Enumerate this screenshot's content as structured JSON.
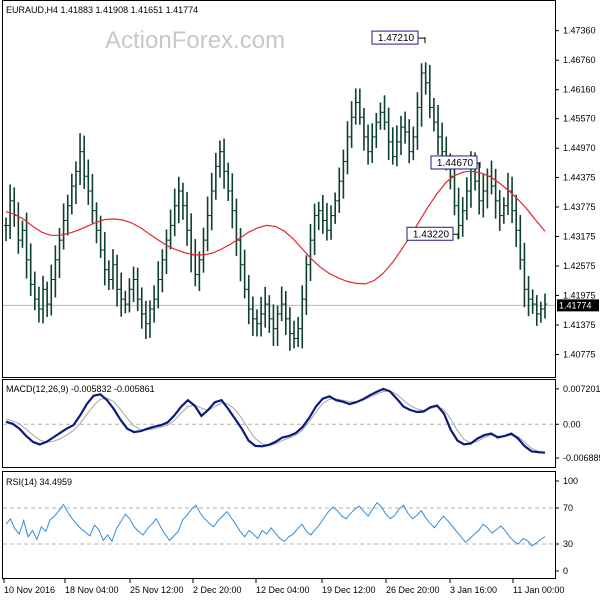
{
  "watermark": "ActionForex.com",
  "chart_data": [
    {
      "type": "candlestick",
      "title": "EURAUD,H4  1.41883 1.41908 1.41651 1.41774",
      "ylim": [
        1.405,
        1.477
      ],
      "yticks": [
        "1.47360",
        "1.46760",
        "1.46160",
        "1.45570",
        "1.44970",
        "1.44375",
        "1.43775",
        "1.43175",
        "1.42575",
        "1.41975",
        "1.41375",
        "1.40775"
      ],
      "current_price": "1.41774",
      "current_value": 1.41774,
      "x_tick_labels": [
        "10 Nov 2016",
        "18 Nov 04:00",
        "25 Nov 12:00",
        "2 Dec 20:00",
        "12 Dec 04:00",
        "19 Dec 12:00",
        "26 Dec 20:00",
        "3 Jan 16:00",
        "11 Jan 00:00"
      ],
      "annotations": [
        {
          "label": "1.47210",
          "value": 1.4721
        },
        {
          "label": "1.44670",
          "value": 1.4467
        },
        {
          "label": "1.43220",
          "value": 1.4322
        }
      ],
      "series": [
        {
          "name": "close",
          "values": [
            1.434,
            1.439,
            1.436,
            1.431,
            1.433,
            1.427,
            1.422,
            1.419,
            1.417,
            1.421,
            1.418,
            1.423,
            1.427,
            1.431,
            1.435,
            1.438,
            1.442,
            1.445,
            1.449,
            1.444,
            1.441,
            1.437,
            1.433,
            1.429,
            1.425,
            1.423,
            1.426,
            1.421,
            1.419,
            1.418,
            1.421,
            1.423,
            1.419,
            1.416,
            1.414,
            1.417,
            1.419,
            1.423,
            1.427,
            1.431,
            1.434,
            1.438,
            1.441,
            1.438,
            1.433,
            1.428,
            1.424,
            1.427,
            1.431,
            1.436,
            1.441,
            1.446,
            1.449,
            1.445,
            1.441,
            1.437,
            1.431,
            1.426,
            1.421,
            1.417,
            1.415,
            1.414,
            1.416,
            1.418,
            1.415,
            1.413,
            1.416,
            1.418,
            1.415,
            1.412,
            1.411,
            1.413,
            1.419,
            1.426,
            1.431,
            1.436,
            1.437,
            1.435,
            1.433,
            1.436,
            1.439,
            1.443,
            1.447,
            1.452,
            1.456,
            1.459,
            1.456,
            1.452,
            1.449,
            1.452,
            1.455,
            1.457,
            1.455,
            1.451,
            1.448,
            1.451,
            1.454,
            1.453,
            1.449,
            1.452,
            1.458,
            1.465,
            1.463,
            1.458,
            1.455,
            1.452,
            1.449,
            1.447,
            1.444,
            1.438,
            1.434,
            1.437,
            1.441,
            1.446,
            1.443,
            1.439,
            1.441,
            1.444,
            1.442,
            1.439,
            1.436,
            1.438,
            1.441,
            1.437,
            1.433,
            1.427,
            1.421,
            1.419,
            1.418,
            1.416,
            1.417,
            1.418
          ]
        },
        {
          "name": "MA",
          "values": [
            1.4368,
            1.4362,
            1.4352,
            1.4338,
            1.4326,
            1.432,
            1.432,
            1.4324,
            1.433,
            1.4338,
            1.4346,
            1.4352,
            1.4353,
            1.4351,
            1.4345,
            1.4335,
            1.4322,
            1.431,
            1.4298,
            1.429,
            1.4284,
            1.428,
            1.428,
            1.4284,
            1.4292,
            1.4302,
            1.4314,
            1.4326,
            1.4335,
            1.434,
            1.4338,
            1.4328,
            1.4312,
            1.4292,
            1.4272,
            1.4255,
            1.4242,
            1.4233,
            1.4226,
            1.4222,
            1.4221,
            1.4228,
            1.4243,
            1.4264,
            1.429,
            1.4318,
            1.4348,
            1.4378,
            1.4405,
            1.4428,
            1.4442,
            1.4449,
            1.445,
            1.4446,
            1.4438,
            1.4425,
            1.441,
            1.4393,
            1.4373,
            1.435,
            1.4328
          ]
        }
      ]
    },
    {
      "type": "line",
      "title": "MACD(12,26,9) -0.005832 -0.005861",
      "yticks": [
        "0.007201",
        "0.00",
        "-0.006885"
      ],
      "ylim": [
        -0.0083,
        0.0082
      ],
      "series": [
        {
          "name": "MACD",
          "values": [
            0.0005,
            0.0001,
            -0.0009,
            -0.0024,
            -0.0036,
            -0.0041,
            -0.0036,
            -0.0027,
            -0.0018,
            -0.0009,
            -0.0002,
            0.0018,
            0.0041,
            0.0058,
            0.0061,
            0.0049,
            0.0031,
            0.0009,
            -0.0009,
            -0.0016,
            -0.0014,
            -0.0009,
            -0.0005,
            -0.0002,
            0.0004,
            0.0018,
            0.0036,
            0.0049,
            0.0038,
            0.0017,
            0.0029,
            0.0045,
            0.0049,
            0.0031,
            0.0011,
            -0.0009,
            -0.0033,
            -0.0044,
            -0.0045,
            -0.0042,
            -0.0036,
            -0.0027,
            -0.0024,
            -0.0018,
            -0.0006,
            0.0013,
            0.0036,
            0.0052,
            0.0057,
            0.0049,
            0.0046,
            0.0041,
            0.0045,
            0.0051,
            0.0059,
            0.0066,
            0.0072,
            0.0067,
            0.0052,
            0.0036,
            0.0029,
            0.0025,
            0.0026,
            0.0035,
            0.0038,
            0.0022,
            -0.0011,
            -0.0033,
            -0.0041,
            -0.0039,
            -0.0029,
            -0.0022,
            -0.0019,
            -0.0027,
            -0.0024,
            -0.0019,
            -0.0029,
            -0.0045,
            -0.0055,
            -0.0057,
            -0.0058
          ]
        },
        {
          "name": "Signal",
          "values": [
            0.001,
            0.0007,
            0.0001,
            -0.001,
            -0.0022,
            -0.0032,
            -0.0037,
            -0.0035,
            -0.003,
            -0.0022,
            -0.0013,
            0.0002,
            0.002,
            0.0038,
            0.0051,
            0.0053,
            0.0046,
            0.003,
            0.0012,
            -0.0003,
            -0.0011,
            -0.0011,
            -0.0009,
            -0.0006,
            -0.0002,
            0.0008,
            0.0023,
            0.0036,
            0.0039,
            0.0033,
            0.0028,
            0.0036,
            0.0044,
            0.0041,
            0.003,
            0.0012,
            -0.001,
            -0.0029,
            -0.004,
            -0.0043,
            -0.004,
            -0.0033,
            -0.0028,
            -0.0022,
            -0.0012,
            0.0005,
            0.0025,
            0.0042,
            0.0051,
            0.0052,
            0.0049,
            0.0046,
            0.0046,
            0.0049,
            0.0055,
            0.0061,
            0.0067,
            0.0068,
            0.0061,
            0.0049,
            0.0038,
            0.0031,
            0.0028,
            0.0032,
            0.0036,
            0.003,
            0.0011,
            -0.0013,
            -0.0031,
            -0.0038,
            -0.0035,
            -0.0027,
            -0.0022,
            -0.0024,
            -0.0025,
            -0.0022,
            -0.0025,
            -0.0037,
            -0.0049,
            -0.0055,
            -0.0057
          ]
        }
      ]
    },
    {
      "type": "line",
      "title": "RSI(14) 34.4959",
      "ylim": [
        0,
        100
      ],
      "yticks": [
        {
          "label": "100",
          "value": 100
        },
        {
          "label": "70",
          "value": 70
        },
        {
          "label": "30",
          "value": 30
        },
        {
          "label": "0",
          "value": 0
        }
      ],
      "levels": [
        70,
        30
      ],
      "series": [
        {
          "name": "RSI",
          "values": [
            52,
            58,
            47,
            41,
            56,
            38,
            45,
            35,
            49,
            44,
            57,
            61,
            67,
            74,
            65,
            58,
            52,
            47,
            43,
            39,
            51,
            46,
            34,
            40,
            33,
            47,
            55,
            63,
            58,
            49,
            44,
            40,
            47,
            52,
            58,
            49,
            41,
            34,
            39,
            44,
            57,
            62,
            69,
            73,
            64,
            58,
            53,
            49,
            56,
            61,
            66,
            59,
            52,
            44,
            38,
            45,
            41,
            36,
            45,
            41,
            48,
            42,
            36,
            33,
            38,
            41,
            47,
            52,
            44,
            40,
            46,
            52,
            59,
            66,
            71,
            67,
            61,
            58,
            64,
            69,
            72,
            66,
            61,
            69,
            76,
            71,
            63,
            58,
            62,
            69,
            73,
            64,
            58,
            62,
            67,
            59,
            53,
            48,
            55,
            61,
            56,
            50,
            44,
            38,
            32,
            36,
            41,
            45,
            52,
            48,
            42,
            46,
            50,
            45,
            38,
            33,
            30,
            36,
            34,
            28,
            31,
            35,
            38
          ]
        }
      ]
    }
  ]
}
